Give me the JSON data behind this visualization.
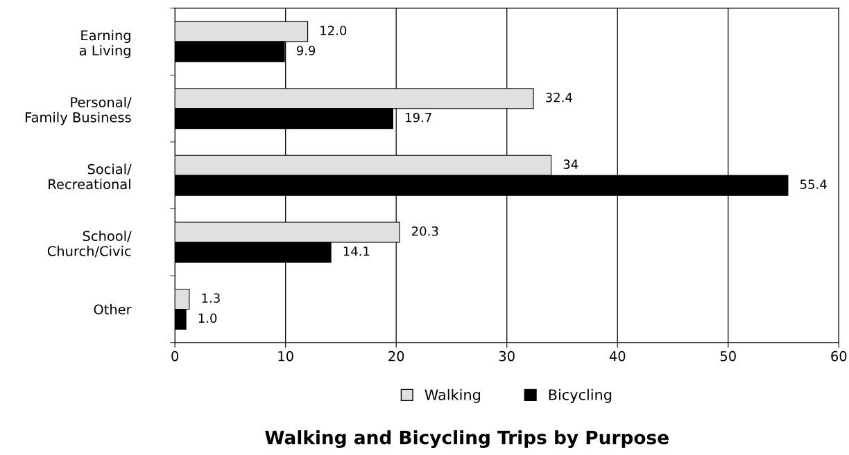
{
  "chart_data": {
    "type": "bar",
    "orientation": "horizontal",
    "title": "Walking and Bicycling Trips by Purpose",
    "categories": [
      "Earning\na Living",
      "Personal/\nFamily Business",
      "Social/\nRecreational",
      "School/\nChurch/Civic",
      "Other"
    ],
    "series": [
      {
        "name": "Walking",
        "color": "#e0e0e0",
        "values": [
          12.0,
          32.4,
          34,
          20.3,
          1.3
        ],
        "value_labels": [
          "12.0",
          "32.4",
          "34",
          "20.3",
          "1.3"
        ]
      },
      {
        "name": "Bicycling",
        "color": "#000000",
        "values": [
          9.9,
          19.7,
          55.4,
          14.1,
          1.0
        ],
        "value_labels": [
          "9.9",
          "19.7",
          "55.4",
          "14.1",
          "1.0"
        ]
      }
    ],
    "xlim": [
      0,
      60
    ],
    "xticks": [
      0,
      10,
      20,
      30,
      40,
      50,
      60
    ],
    "grid": "x",
    "legend": "bottom"
  }
}
